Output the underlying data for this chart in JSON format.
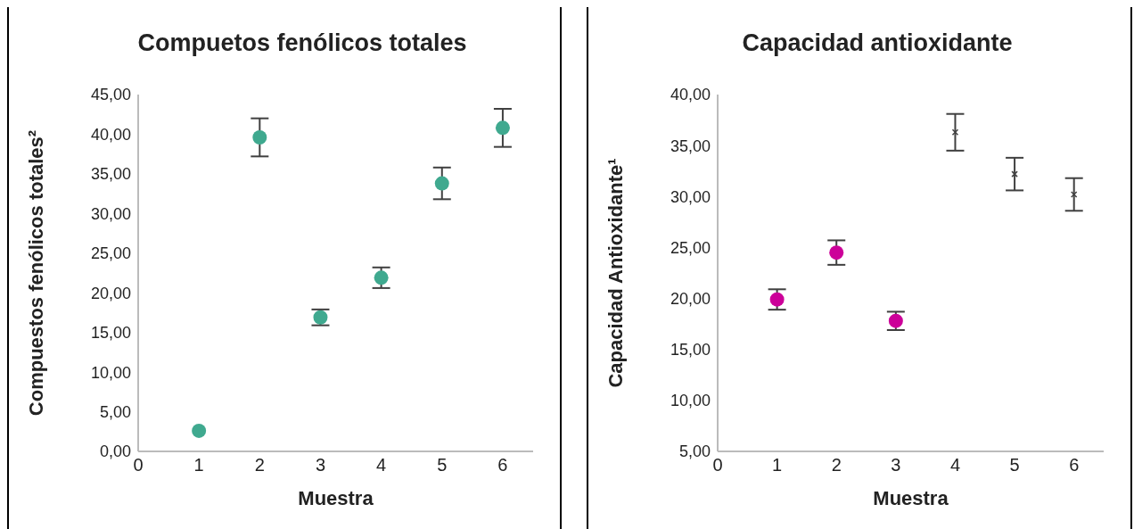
{
  "chart_data": [
    {
      "type": "scatter",
      "title": "Compuetos fenólicos totales",
      "xlabel": "Muestra",
      "ylabel": "Compuestos fenólicos totales²",
      "x": [
        1,
        2,
        3,
        4,
        5,
        6
      ],
      "xlim": [
        0,
        6.5
      ],
      "xticks": [
        0,
        1,
        2,
        3,
        4,
        5,
        6
      ],
      "ylim": [
        0,
        45
      ],
      "yticks": [
        {
          "value": 0,
          "label": "0,00"
        },
        {
          "value": 5,
          "label": "5,00"
        },
        {
          "value": 10,
          "label": "10,00"
        },
        {
          "value": 15,
          "label": "15,00"
        },
        {
          "value": 20,
          "label": "20,00"
        },
        {
          "value": 25,
          "label": "25,00"
        },
        {
          "value": 30,
          "label": "30,00"
        },
        {
          "value": 35,
          "label": "35,00"
        },
        {
          "value": 40,
          "label": "40,00"
        },
        {
          "value": 45,
          "label": "45,00"
        }
      ],
      "marker": "circle",
      "grid": false,
      "legend": false,
      "series": [
        {
          "color": "#3fa98f",
          "values": [
            2.6,
            39.6,
            16.9,
            21.9,
            33.8,
            40.8
          ],
          "errors": [
            null,
            2.4,
            1.0,
            1.3,
            2.0,
            2.4
          ]
        }
      ]
    },
    {
      "type": "scatter",
      "title": "Capacidad antioxidante",
      "xlabel": "Muestra",
      "ylabel": "Capacidad Antioxidante¹",
      "x": [
        1,
        2,
        3,
        4,
        5,
        6
      ],
      "xlim": [
        0,
        6.5
      ],
      "xticks": [
        0,
        1,
        2,
        3,
        4,
        5,
        6
      ],
      "ylim": [
        5,
        40
      ],
      "yticks": [
        {
          "value": 5,
          "label": "5,00"
        },
        {
          "value": 10,
          "label": "10,00"
        },
        {
          "value": 15,
          "label": "15,00"
        },
        {
          "value": 20,
          "label": "20,00"
        },
        {
          "value": 25,
          "label": "25,00"
        },
        {
          "value": 30,
          "label": "30,00"
        },
        {
          "value": 35,
          "label": "35,00"
        },
        {
          "value": 40,
          "label": "40,00"
        }
      ],
      "marker": "circle",
      "grid": false,
      "legend": false,
      "series": [
        {
          "color": "#cc0099",
          "values": [
            19.9,
            24.5,
            17.8,
            null,
            null,
            null
          ],
          "errors": [
            1.0,
            1.2,
            0.9,
            null,
            null,
            null
          ]
        },
        {
          "color": "#404040",
          "marker": "cross",
          "values": [
            null,
            null,
            null,
            36.3,
            32.2,
            30.2
          ],
          "errors": [
            null,
            null,
            null,
            1.8,
            1.6,
            1.6
          ]
        }
      ]
    }
  ]
}
